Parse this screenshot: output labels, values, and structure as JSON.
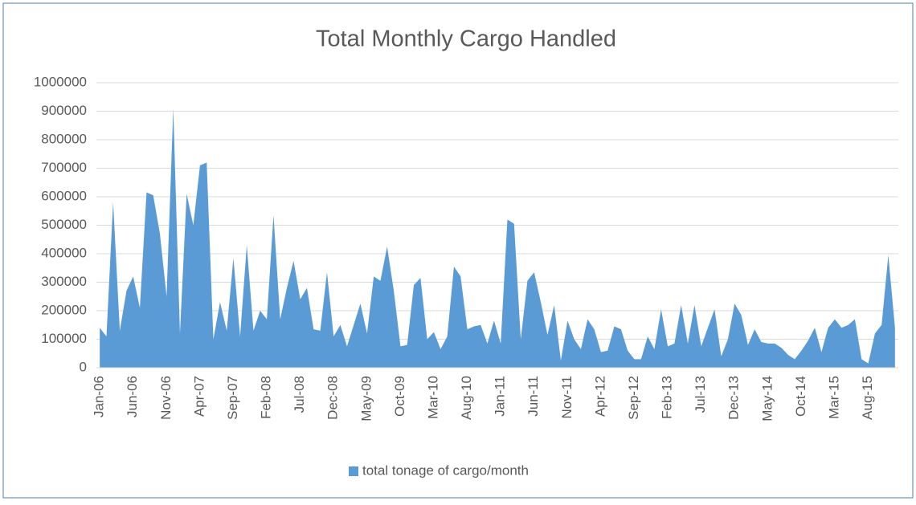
{
  "chart_data": {
    "type": "area",
    "title": "Total Monthly Cargo Handled",
    "categories": [
      "Jan-06",
      null,
      null,
      null,
      null,
      "Jun-06",
      null,
      null,
      null,
      null,
      "Nov-06",
      null,
      null,
      null,
      null,
      "Apr-07",
      null,
      null,
      null,
      null,
      "Sep-07",
      null,
      null,
      null,
      null,
      "Feb-08",
      null,
      null,
      null,
      null,
      "Jul-08",
      null,
      null,
      null,
      null,
      "Dec-08",
      null,
      null,
      null,
      null,
      "May-09",
      null,
      null,
      null,
      null,
      "Oct-09",
      null,
      null,
      null,
      null,
      "Mar-10",
      null,
      null,
      null,
      null,
      "Aug-10",
      null,
      null,
      null,
      null,
      "Jan-11",
      null,
      null,
      null,
      null,
      "Jun-11",
      null,
      null,
      null,
      null,
      "Nov-11",
      null,
      null,
      null,
      null,
      "Apr-12",
      null,
      null,
      null,
      null,
      "Sep-12",
      null,
      null,
      null,
      null,
      "Feb-13",
      null,
      null,
      null,
      null,
      "Jul-13",
      null,
      null,
      null,
      null,
      "Dec-13",
      null,
      null,
      null,
      null,
      "May-14",
      null,
      null,
      null,
      null,
      "Oct-14",
      null,
      null,
      null,
      null,
      "Mar-15",
      null,
      null,
      null,
      null,
      "Aug-15",
      null,
      null,
      null,
      null
    ],
    "series": [
      {
        "name": "total tonage of cargo/month",
        "color": "#5b9bd5",
        "values": [
          140000,
          110000,
          580000,
          130000,
          270000,
          320000,
          210000,
          615000,
          605000,
          470000,
          250000,
          910000,
          120000,
          610000,
          500000,
          710000,
          720000,
          100000,
          230000,
          130000,
          385000,
          110000,
          430000,
          130000,
          200000,
          170000,
          535000,
          170000,
          280000,
          375000,
          240000,
          280000,
          135000,
          130000,
          335000,
          110000,
          150000,
          75000,
          150000,
          225000,
          120000,
          320000,
          305000,
          425000,
          270000,
          75000,
          80000,
          290000,
          315000,
          100000,
          125000,
          65000,
          110000,
          355000,
          320000,
          135000,
          145000,
          150000,
          85000,
          165000,
          85000,
          520000,
          505000,
          100000,
          305000,
          335000,
          230000,
          115000,
          220000,
          25000,
          165000,
          100000,
          65000,
          170000,
          135000,
          55000,
          60000,
          145000,
          135000,
          60000,
          30000,
          30000,
          110000,
          65000,
          205000,
          75000,
          85000,
          220000,
          85000,
          220000,
          75000,
          140000,
          205000,
          40000,
          100000,
          225000,
          185000,
          80000,
          135000,
          90000,
          85000,
          85000,
          70000,
          45000,
          30000,
          60000,
          95000,
          140000,
          55000,
          140000,
          170000,
          140000,
          150000,
          170000,
          30000,
          15000,
          120000,
          150000,
          395000,
          140000
        ]
      }
    ],
    "ylim": [
      0,
      1000000
    ],
    "yticks": [
      0,
      100000,
      200000,
      300000,
      400000,
      500000,
      600000,
      700000,
      800000,
      900000,
      1000000
    ],
    "grid": true,
    "legend": "bottom"
  }
}
